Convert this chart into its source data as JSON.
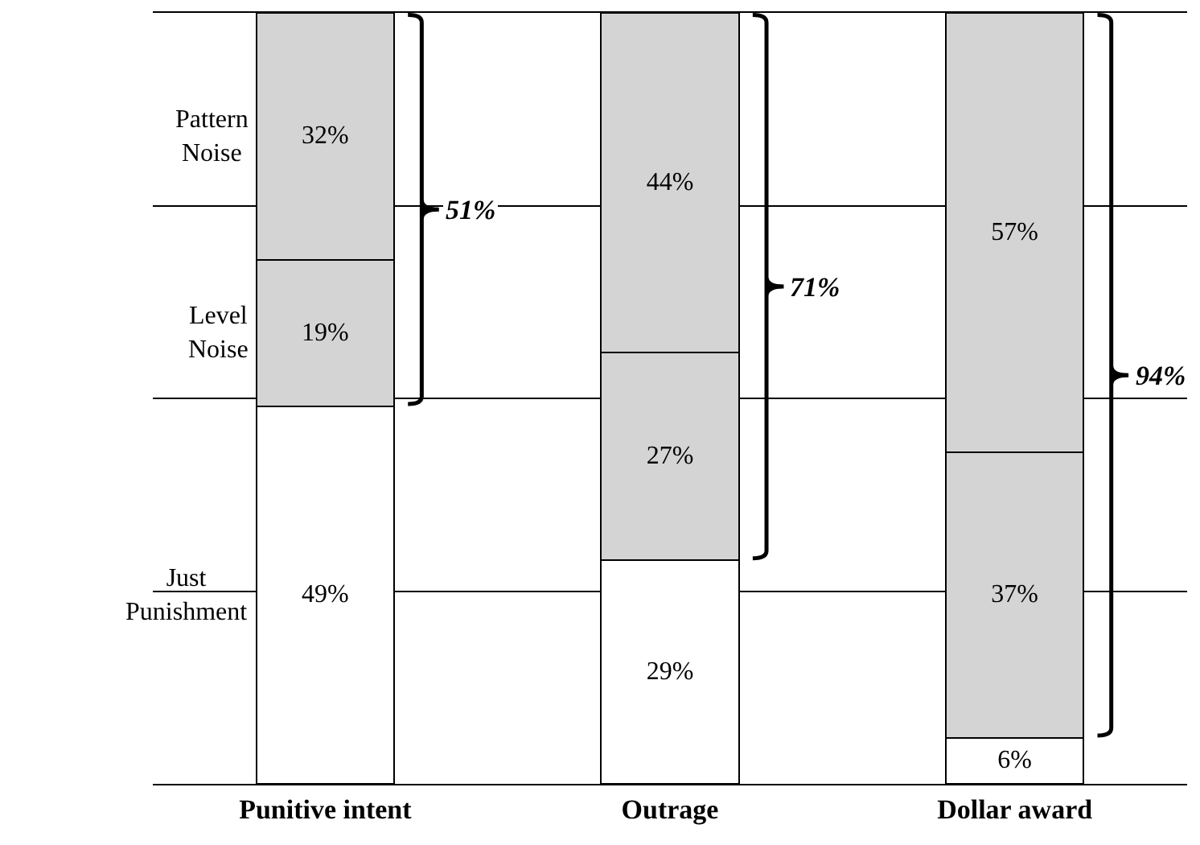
{
  "chart_data": {
    "type": "bar",
    "stacked": true,
    "categories": [
      "Punitive intent",
      "Outrage",
      "Dollar award"
    ],
    "series": [
      {
        "name": "Just Punishment",
        "color": "#ffffff",
        "values": [
          49,
          29,
          6
        ],
        "value_labels": [
          "49%",
          "29%",
          "6%"
        ]
      },
      {
        "name": "Level Noise",
        "color": "#d4d4d4",
        "values": [
          19,
          27,
          37
        ],
        "value_labels": [
          "19%",
          "27%",
          "37%"
        ]
      },
      {
        "name": "Pattern Noise",
        "color": "#d4d4d4",
        "values": [
          32,
          44,
          57
        ],
        "value_labels": [
          "32%",
          "44%",
          "57%"
        ]
      }
    ],
    "ylim": [
      0,
      100
    ],
    "yticks": [
      {
        "value": 25,
        "label": null
      },
      {
        "value": 50,
        "label": null
      },
      {
        "value": 75,
        "label": null
      }
    ],
    "grid": "y",
    "legend": false,
    "tick_labels": "x",
    "annotations": [
      "51%",
      "71%",
      "94%"
    ]
  }
}
